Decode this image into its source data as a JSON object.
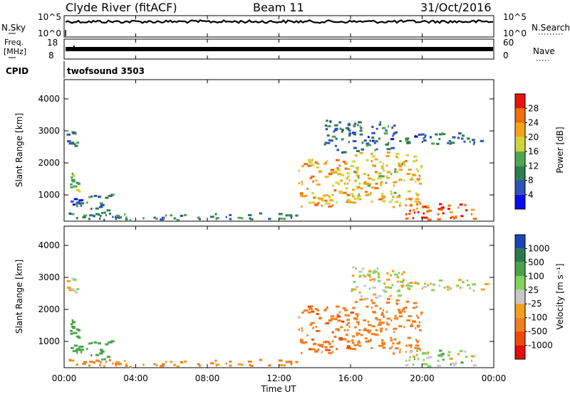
{
  "header": {
    "site": "Clyde River (fitACF)",
    "beam": "Beam 11",
    "date": "31/Oct/2016"
  },
  "noise_panel": {
    "left_label": "N.Sky",
    "left_top": "10^5",
    "left_bottom": "10^0",
    "right_label": "N.Search",
    "right_top": "10^5",
    "right_bottom": "10^0",
    "sky_level": 0.72,
    "search_level": 0.7
  },
  "freq_panel": {
    "left_label_1": "Freq.",
    "left_label_2": "[MHz]",
    "left_top": "18",
    "left_bottom": "8",
    "right_top": "60",
    "right_bottom": "0",
    "right_label": "Nave",
    "freq_level": 0.5,
    "nave_level": 0.46
  },
  "cpid": {
    "label": "CPID",
    "value": "twofsound 3503"
  },
  "x_axis": {
    "label": "Time UT",
    "ticks": [
      "00:00",
      "04:00",
      "08:00",
      "12:00",
      "16:00",
      "20:00",
      "00:00"
    ],
    "hours": [
      0,
      4,
      8,
      12,
      16,
      20,
      24
    ]
  },
  "y_axis": {
    "label": "Slant Range [km]",
    "range_km": [
      180,
      4600
    ],
    "ticks": [
      1000,
      2000,
      3000,
      4000
    ]
  },
  "power_bar": {
    "label": "Power [dB]",
    "ticks": [
      "4",
      "8",
      "12",
      "16",
      "20",
      "24",
      "28"
    ],
    "colors": [
      "#0a0aee",
      "#2f52b8",
      "#2e7d4f",
      "#4fa64f",
      "#cfd43a",
      "#f4a41a",
      "#f26d0c",
      "#e8140a"
    ]
  },
  "velocity_bar": {
    "label": "Velocity [m s⁻¹]",
    "ticks": [
      "1000",
      "500",
      "100",
      "25",
      "-25",
      "-100",
      "-500",
      "-1000"
    ],
    "colors": [
      "#1b44b5",
      "#2a7a4e",
      "#4aa34a",
      "#7fd45a",
      "#c8c8c8",
      "#f2a01a",
      "#f08020",
      "#ee4a0e",
      "#e60a0a"
    ]
  },
  "chart_data": [
    {
      "type": "heatmap",
      "title": "Power",
      "x_range_hours": [
        0,
        24
      ],
      "y_range_km": [
        180,
        4600
      ],
      "regions": [
        {
          "t": [
            0.1,
            0.7
          ],
          "km": [
            2500,
            3050
          ],
          "dB": 8
        },
        {
          "t": [
            0.1,
            0.8
          ],
          "km": [
            1050,
            1750
          ],
          "dB": 16
        },
        {
          "t": [
            0.3,
            1.1
          ],
          "km": [
            600,
            850
          ],
          "dB": 8
        },
        {
          "t": [
            1.2,
            2.6
          ],
          "km": [
            400,
            1000
          ],
          "dB": 10
        },
        {
          "t": [
            0.0,
            13.0
          ],
          "km": [
            180,
            400
          ],
          "dB": 10
        },
        {
          "t": [
            13.0,
            16.0
          ],
          "km": [
            600,
            2100
          ],
          "dB": 22
        },
        {
          "t": [
            16.0,
            20.0
          ],
          "km": [
            600,
            2300
          ],
          "dB": 20
        },
        {
          "t": [
            19.0,
            23.0
          ],
          "km": [
            180,
            700
          ],
          "dB": 28
        },
        {
          "t": [
            14.5,
            18.5
          ],
          "km": [
            2300,
            3300
          ],
          "dB": 8
        },
        {
          "t": [
            18.5,
            23.6
          ],
          "km": [
            2550,
            2900
          ],
          "dB": 8
        }
      ]
    },
    {
      "type": "heatmap",
      "title": "Velocity",
      "x_range_hours": [
        0,
        24
      ],
      "y_range_km": [
        180,
        4600
      ],
      "regions": [
        {
          "t": [
            0.1,
            0.7
          ],
          "km": [
            2500,
            3050
          ],
          "v": 0
        },
        {
          "t": [
            0.1,
            0.8
          ],
          "km": [
            1050,
            1750
          ],
          "v": 200
        },
        {
          "t": [
            0.3,
            1.1
          ],
          "km": [
            600,
            850
          ],
          "v": 300
        },
        {
          "t": [
            1.2,
            2.6
          ],
          "km": [
            400,
            1000
          ],
          "v": 300
        },
        {
          "t": [
            0.0,
            13.0
          ],
          "km": [
            180,
            400
          ],
          "v": -150
        },
        {
          "t": [
            13.0,
            16.0
          ],
          "km": [
            600,
            2100
          ],
          "v": -400
        },
        {
          "t": [
            16.0,
            20.0
          ],
          "km": [
            600,
            2300
          ],
          "v": -200
        },
        {
          "t": [
            19.0,
            23.0
          ],
          "km": [
            180,
            700
          ],
          "v": 50
        },
        {
          "t": [
            16.0,
            19.0
          ],
          "km": [
            2300,
            3300
          ],
          "v": 0
        },
        {
          "t": [
            18.5,
            23.6
          ],
          "km": [
            2550,
            2900
          ],
          "v": 0
        }
      ]
    }
  ]
}
